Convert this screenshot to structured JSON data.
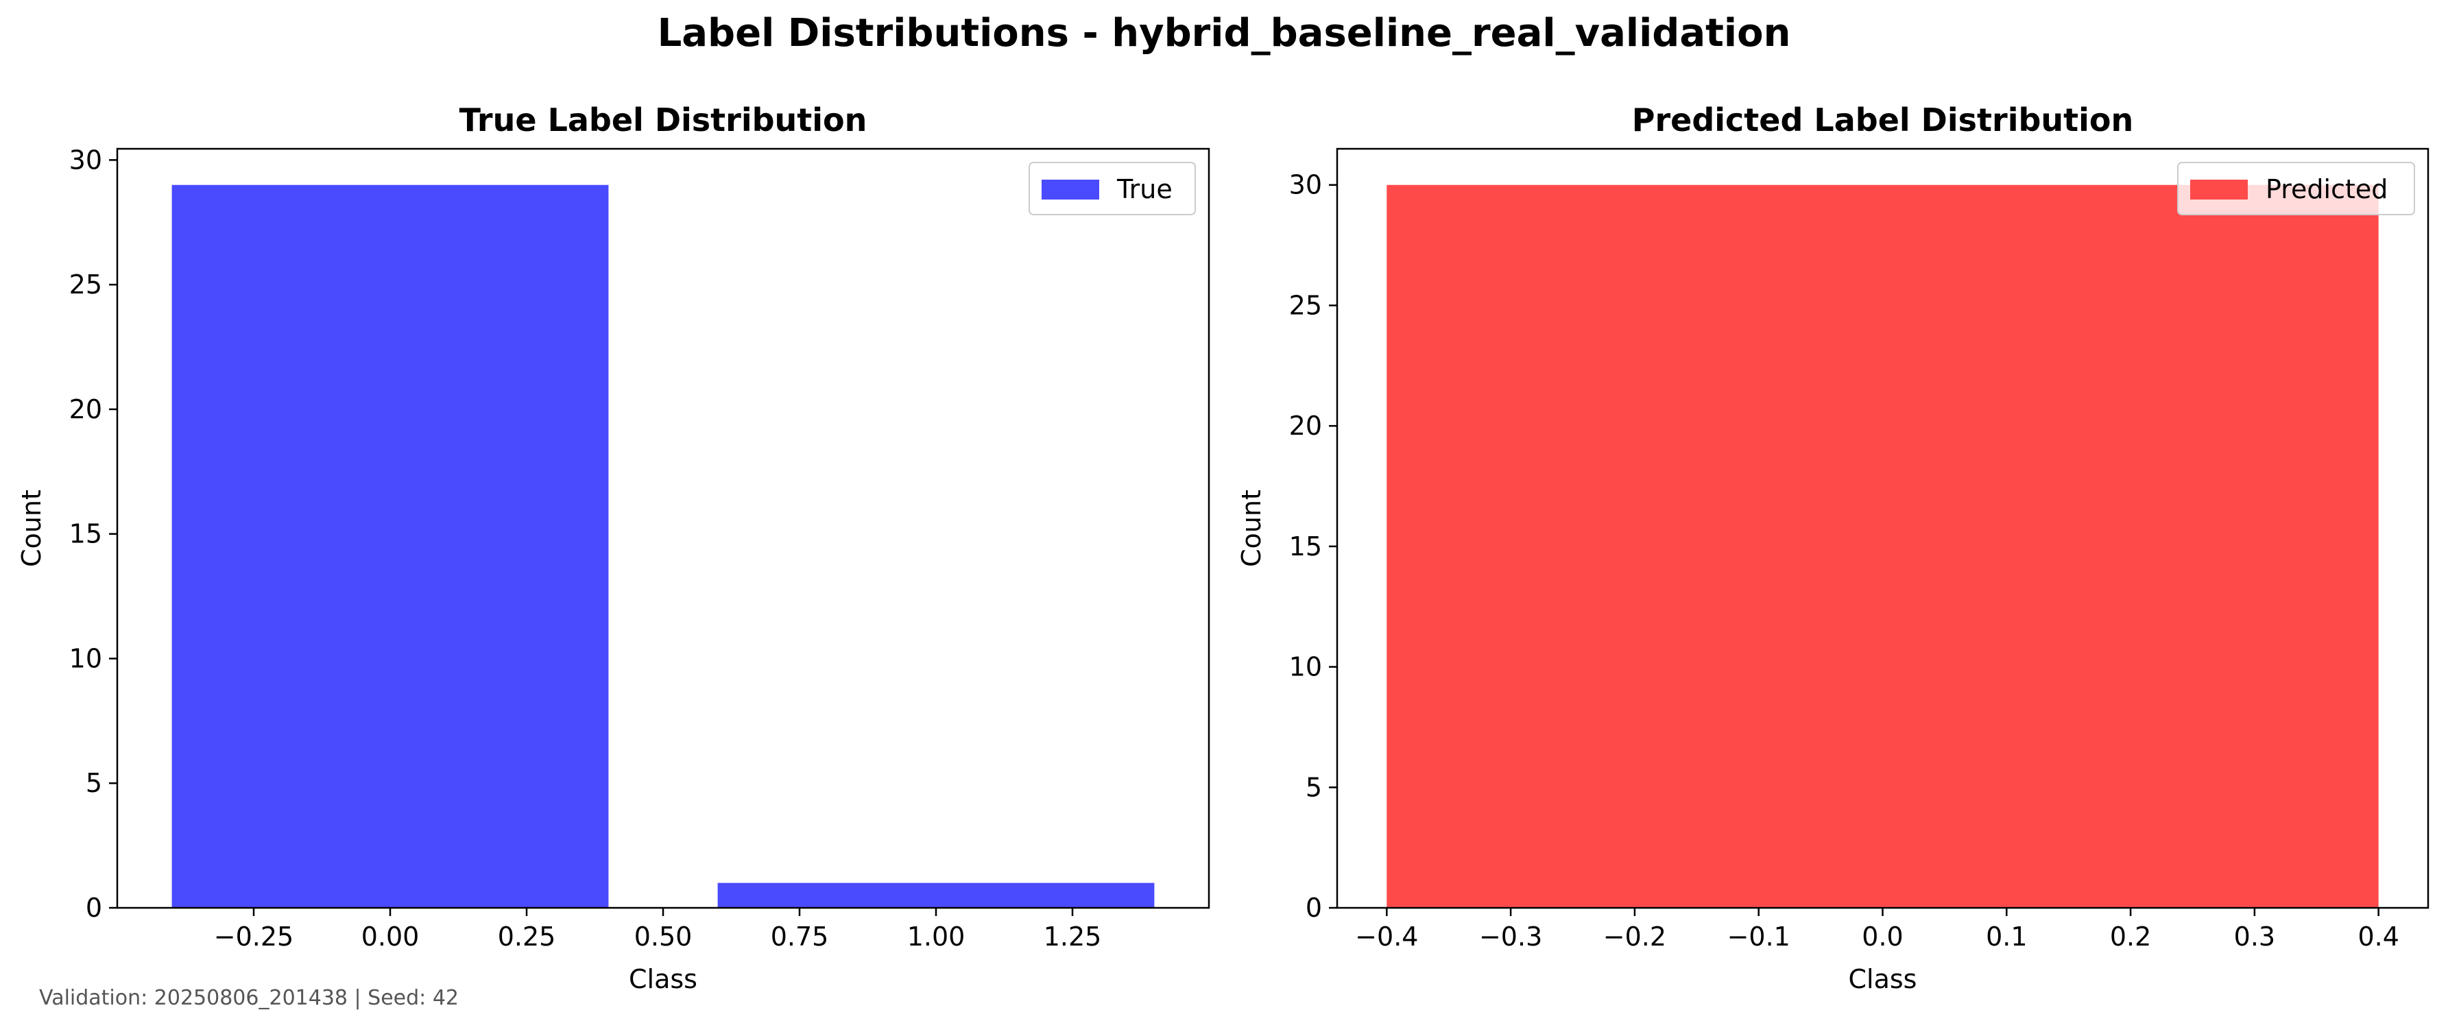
{
  "figure": {
    "title": "Label Distributions - hybrid_baseline_real_validation",
    "footer": "Validation: 20250806_201438 | Seed: 42"
  },
  "chart_data": [
    {
      "type": "bar",
      "title": "True Label Distribution",
      "xlabel": "Class",
      "ylabel": "Count",
      "x": [
        0,
        1
      ],
      "values": [
        29,
        1
      ],
      "bar_width": 0.8,
      "xlim": [
        -0.5,
        1.5
      ],
      "ylim": [
        0,
        30.45
      ],
      "xticks": [
        -0.25,
        0.0,
        0.25,
        0.5,
        0.75,
        1.0,
        1.25
      ],
      "xtick_labels": [
        "−0.25",
        "0.00",
        "0.25",
        "0.50",
        "0.75",
        "1.00",
        "1.25"
      ],
      "yticks": [
        0,
        5,
        10,
        15,
        20,
        25,
        30
      ],
      "ytick_labels": [
        "0",
        "5",
        "10",
        "15",
        "20",
        "25",
        "30"
      ],
      "color": "#4a4aff",
      "grid": false,
      "legend": {
        "label": "True",
        "placement": "upper right"
      }
    },
    {
      "type": "bar",
      "title": "Predicted Label Distribution",
      "xlabel": "Class",
      "ylabel": "Count",
      "x": [
        0
      ],
      "values": [
        30
      ],
      "bar_width": 0.8,
      "xlim": [
        -0.44,
        0.44
      ],
      "ylim": [
        0,
        31.5
      ],
      "xticks": [
        -0.4,
        -0.3,
        -0.2,
        -0.1,
        0.0,
        0.1,
        0.2,
        0.3,
        0.4
      ],
      "xtick_labels": [
        "−0.4",
        "−0.3",
        "−0.2",
        "−0.1",
        "0.0",
        "0.1",
        "0.2",
        "0.3",
        "0.4"
      ],
      "yticks": [
        0,
        5,
        10,
        15,
        20,
        25,
        30
      ],
      "ytick_labels": [
        "0",
        "5",
        "10",
        "15",
        "20",
        "25",
        "30"
      ],
      "color": "#ff4a4a",
      "grid": false,
      "legend": {
        "label": "Predicted",
        "placement": "upper right"
      }
    }
  ]
}
